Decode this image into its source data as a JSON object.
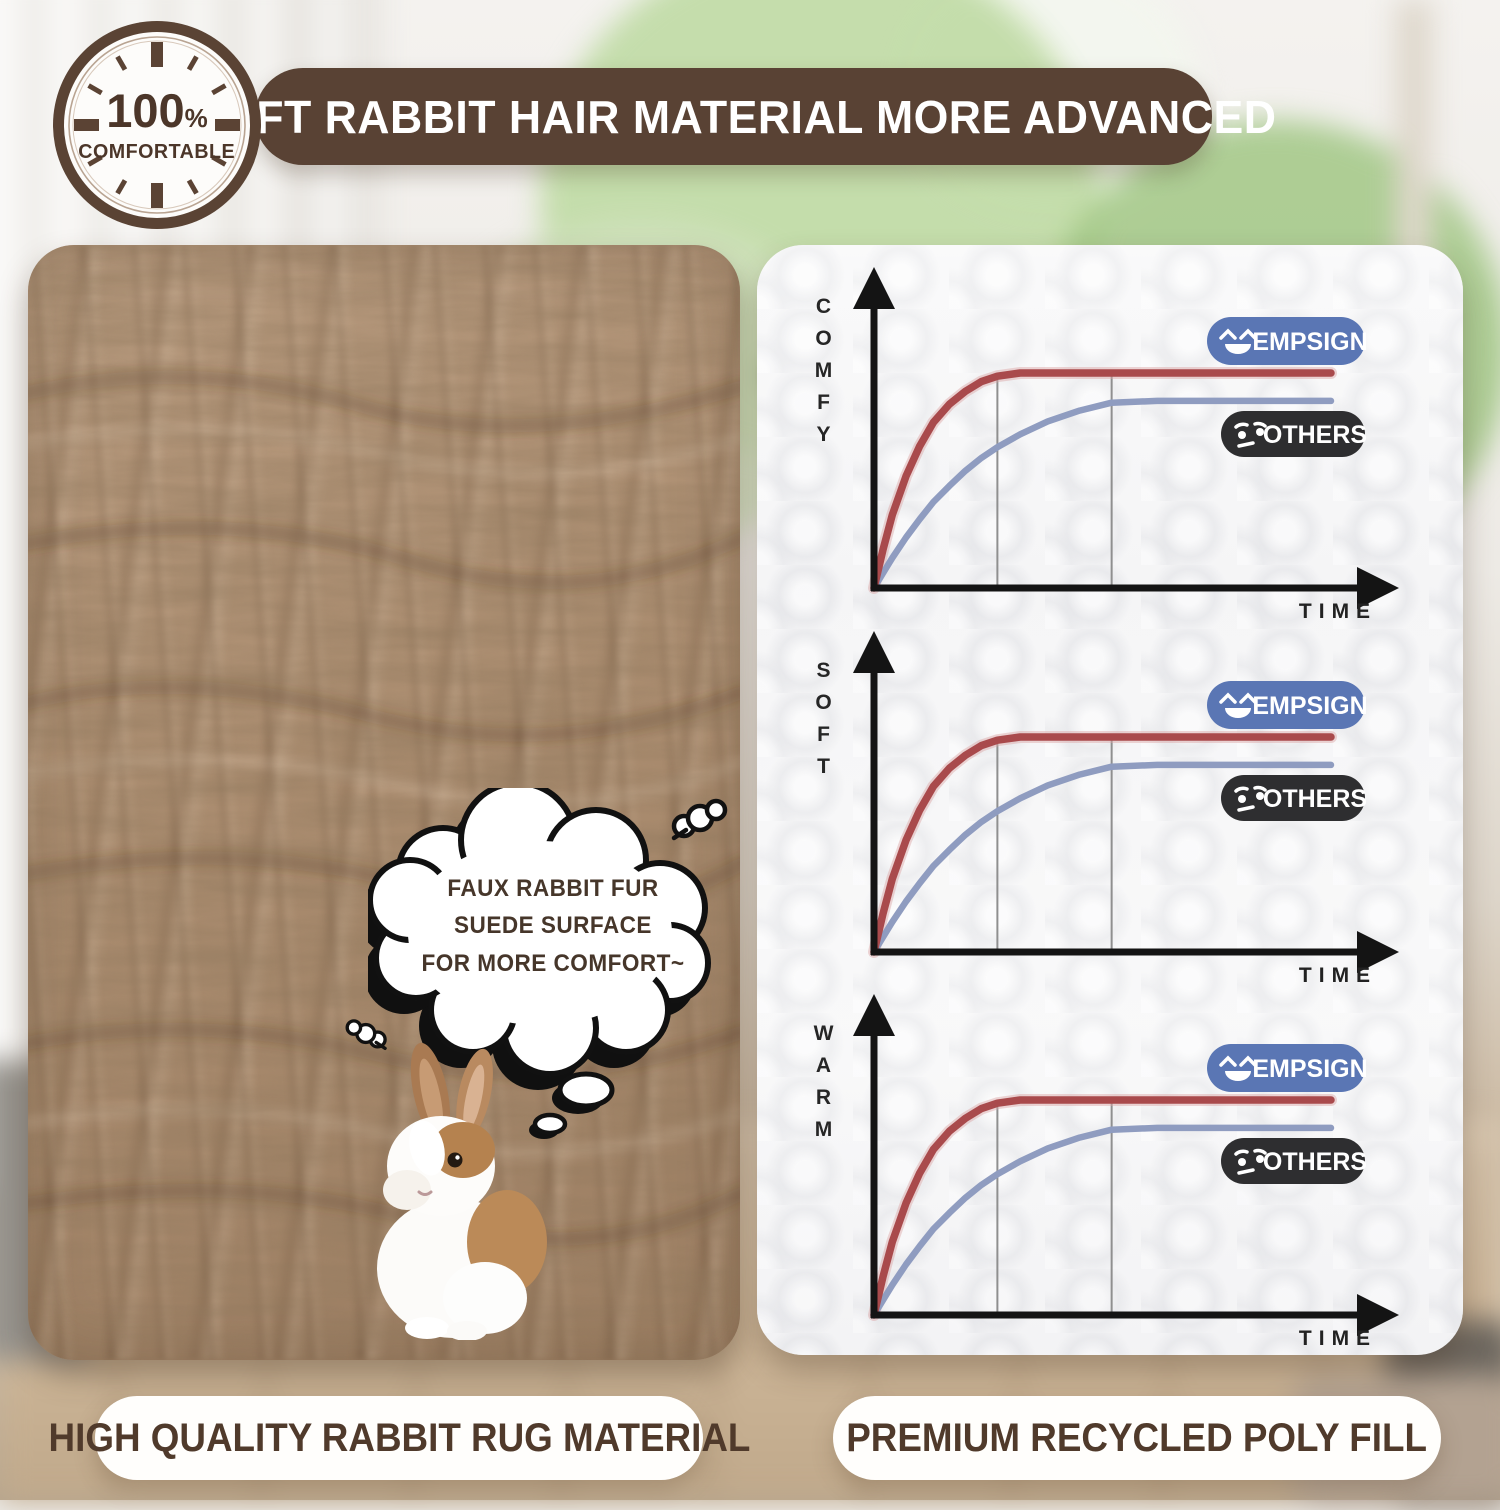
{
  "badge": {
    "value": "100",
    "percent_sign": "%",
    "label": "COMFORTABLE"
  },
  "banner": {
    "title": "SOFT RABBIT HAIR MATERIAL MORE ADVANCED",
    "bg_color": "#594234",
    "text_color": "#ffffff"
  },
  "photo_panel": {
    "bubble_line1": "FAUX RABBIT FUR SUEDE SURFACE",
    "bubble_line2": "FOR MORE COMFORT~"
  },
  "captions": {
    "left": "HIGH QUALITY RABBIT RUG MATERIAL",
    "right": "PREMIUM RECYCLED POLY FILL"
  },
  "legend": {
    "brand": "EMPSIGN",
    "others": "OTHERS",
    "brand_color": "#5a76b4",
    "others_color": "#2e2e30"
  },
  "colors": {
    "banner_brown": "#594234",
    "badge_brown": "#5a4334",
    "caption_text": "#503a2b",
    "empsign_line": "#a94a4c",
    "others_line": "#8f9cc0"
  },
  "chart_data": [
    {
      "type": "line",
      "ylabel": "COMFY",
      "xlabel": "TIME",
      "x": [
        0,
        0.02,
        0.04,
        0.07,
        0.1,
        0.13,
        0.165,
        0.2,
        0.235,
        0.27,
        0.32,
        0.38,
        0.45,
        0.52,
        0.62,
        0.75,
        0.88,
        1.0
      ],
      "series": [
        {
          "name": "EMPSIGN",
          "color": "#a94a4c",
          "values": [
            0,
            0.18,
            0.34,
            0.52,
            0.66,
            0.77,
            0.855,
            0.915,
            0.96,
            0.985,
            1,
            1,
            1,
            1,
            1,
            1,
            1,
            1
          ]
        },
        {
          "name": "OTHERS",
          "color": "#8f9cc0",
          "values": [
            0,
            0.07,
            0.14,
            0.235,
            0.32,
            0.4,
            0.475,
            0.545,
            0.605,
            0.655,
            0.715,
            0.775,
            0.825,
            0.862,
            0.87,
            0.87,
            0.87,
            0.87
          ]
        }
      ],
      "marker_x": [
        0.27,
        0.52
      ],
      "axis_ticks": "none (qualitative axes with arrows)",
      "legend_position": "right"
    },
    {
      "type": "line",
      "ylabel": "SOFT",
      "xlabel": "TIME",
      "x": [
        0,
        0.02,
        0.04,
        0.07,
        0.1,
        0.13,
        0.165,
        0.2,
        0.235,
        0.27,
        0.32,
        0.38,
        0.45,
        0.52,
        0.62,
        0.75,
        0.88,
        1.0
      ],
      "series": [
        {
          "name": "EMPSIGN",
          "color": "#a94a4c",
          "values": [
            0,
            0.18,
            0.34,
            0.52,
            0.66,
            0.77,
            0.855,
            0.915,
            0.96,
            0.985,
            1,
            1,
            1,
            1,
            1,
            1,
            1,
            1
          ]
        },
        {
          "name": "OTHERS",
          "color": "#8f9cc0",
          "values": [
            0,
            0.07,
            0.14,
            0.235,
            0.32,
            0.4,
            0.475,
            0.545,
            0.605,
            0.655,
            0.715,
            0.775,
            0.825,
            0.862,
            0.87,
            0.87,
            0.87,
            0.87
          ]
        }
      ],
      "marker_x": [
        0.27,
        0.52
      ],
      "axis_ticks": "none (qualitative axes with arrows)",
      "legend_position": "right"
    },
    {
      "type": "line",
      "ylabel": "WARM",
      "xlabel": "TIME",
      "x": [
        0,
        0.02,
        0.04,
        0.07,
        0.1,
        0.13,
        0.165,
        0.2,
        0.235,
        0.27,
        0.32,
        0.38,
        0.45,
        0.52,
        0.62,
        0.75,
        0.88,
        1.0
      ],
      "series": [
        {
          "name": "EMPSIGN",
          "color": "#a94a4c",
          "values": [
            0,
            0.18,
            0.34,
            0.52,
            0.66,
            0.77,
            0.855,
            0.915,
            0.96,
            0.985,
            1,
            1,
            1,
            1,
            1,
            1,
            1,
            1
          ]
        },
        {
          "name": "OTHERS",
          "color": "#8f9cc0",
          "values": [
            0,
            0.07,
            0.14,
            0.235,
            0.32,
            0.4,
            0.475,
            0.545,
            0.605,
            0.655,
            0.715,
            0.775,
            0.825,
            0.862,
            0.87,
            0.87,
            0.87,
            0.87
          ]
        }
      ],
      "marker_x": [
        0.27,
        0.52
      ],
      "axis_ticks": "none (qualitative axes with arrows)",
      "legend_position": "right"
    }
  ]
}
